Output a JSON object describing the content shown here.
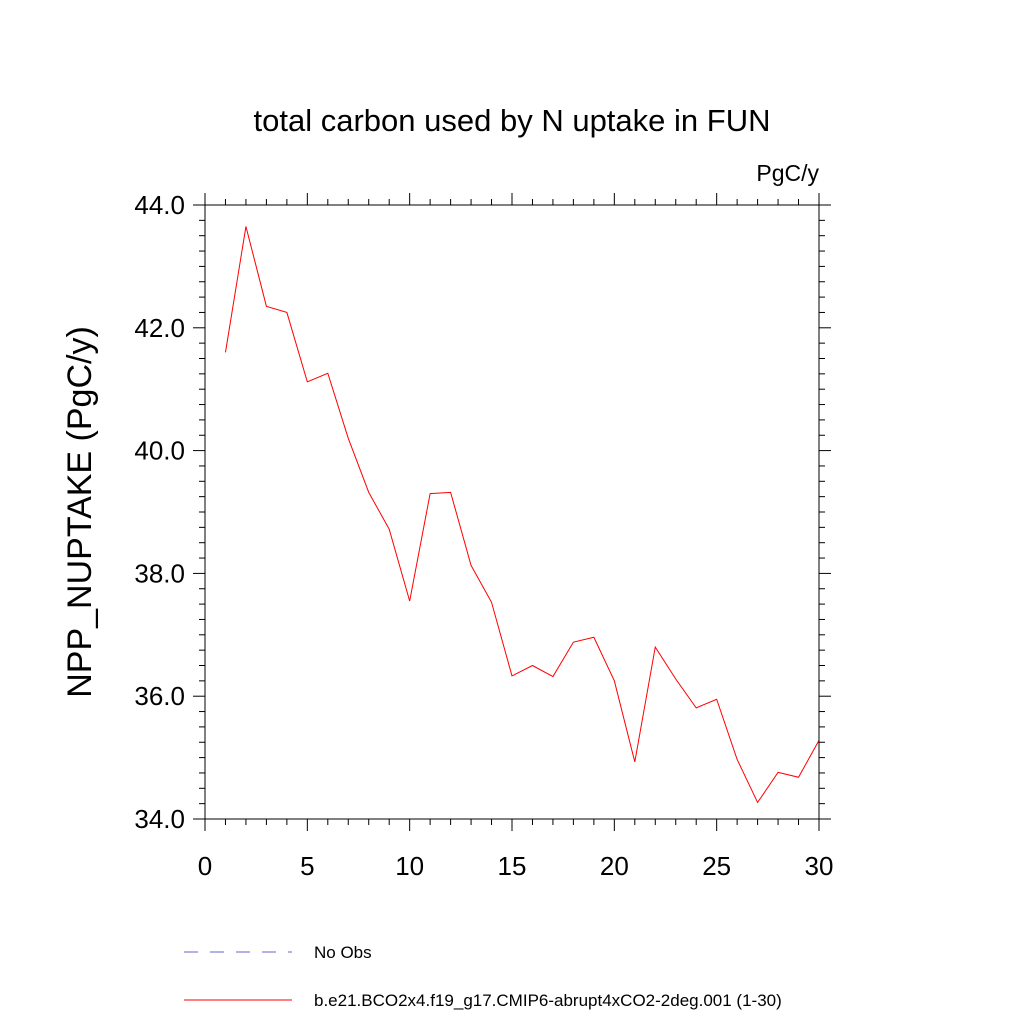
{
  "chart_data": {
    "type": "line",
    "title": "total carbon used by N uptake in FUN",
    "units": "PgC/y",
    "ylabel": "NPP_NUPTAKE  (PgC/y)",
    "xlabel": "",
    "xlim": [
      0,
      30
    ],
    "ylim": [
      34.0,
      44.0
    ],
    "x_ticks": [
      0,
      5,
      10,
      15,
      20,
      25,
      30
    ],
    "x_tick_labels": [
      "0",
      "5",
      "10",
      "15",
      "20",
      "25",
      "30"
    ],
    "y_ticks": [
      34,
      36,
      38,
      40,
      42,
      44
    ],
    "y_tick_labels": [
      "34.0",
      "36.0",
      "38.0",
      "40.0",
      "42.0",
      "44.0"
    ],
    "grid": false,
    "legend_position": "bottom",
    "series": [
      {
        "name": "No Obs",
        "color": "#6666cc",
        "dash": true,
        "values": []
      },
      {
        "name": "b.e21.BCO2x4.f19_g17.CMIP6-abrupt4xCO2-2deg.001 (1-30)",
        "color": "#ff0000",
        "dash": false,
        "x": [
          1,
          2,
          3,
          4,
          5,
          6,
          7,
          8,
          9,
          10,
          11,
          12,
          13,
          14,
          15,
          16,
          17,
          18,
          19,
          20,
          21,
          22,
          23,
          24,
          25,
          26,
          27,
          28,
          29,
          30
        ],
        "values": [
          41.6,
          43.65,
          42.35,
          42.25,
          41.12,
          41.26,
          40.2,
          39.32,
          38.72,
          37.55,
          39.3,
          39.32,
          38.13,
          37.53,
          36.33,
          36.5,
          36.32,
          36.88,
          36.96,
          36.25,
          34.93,
          36.8,
          36.28,
          35.81,
          35.95,
          34.97,
          34.27,
          34.76,
          34.68,
          35.28
        ]
      }
    ]
  }
}
